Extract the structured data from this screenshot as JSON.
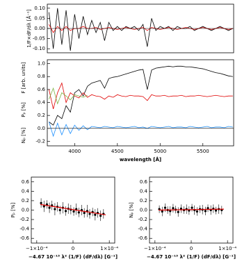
{
  "chart_data": [
    {
      "type": "line",
      "ylabel": "1/F×dF/dλ [Å⁻¹]",
      "xlim": [
        3680,
        5860
      ],
      "ylim": [
        -0.12,
        0.12
      ],
      "yticks": [
        {
          "value": -0.1,
          "label": "-0.10"
        },
        {
          "value": -0.05,
          "label": "-0.05"
        },
        {
          "value": 0,
          "label": "0.00"
        },
        {
          "value": 0.05,
          "label": "0.05"
        },
        {
          "value": 0.1,
          "label": "0.10"
        }
      ],
      "x": [
        3700,
        3750,
        3800,
        3850,
        3900,
        3950,
        4000,
        4050,
        4100,
        4150,
        4200,
        4250,
        4300,
        4350,
        4400,
        4450,
        4500,
        4550,
        4600,
        4650,
        4700,
        4750,
        4800,
        4850,
        4900,
        4950,
        5000,
        5050,
        5100,
        5150,
        5200,
        5250,
        5300,
        5350,
        5400,
        5450,
        5500,
        5550,
        5600,
        5650,
        5700,
        5750,
        5800,
        5850
      ],
      "series": [
        {
          "color": "#000000",
          "values": [
            0.08,
            -0.1,
            0.1,
            -0.08,
            0.09,
            -0.11,
            0.07,
            -0.05,
            0.06,
            -0.03,
            0.04,
            -0.02,
            0.03,
            -0.06,
            0.03,
            -0.01,
            0.01,
            -0.01,
            0.01,
            0.0,
            0.01,
            -0.01,
            0.02,
            -0.09,
            0.05,
            -0.01,
            0.01,
            0.0,
            0.01,
            -0.01,
            0.01,
            0.0,
            0.0,
            0.01,
            -0.01,
            0.0,
            0.01,
            0.0,
            -0.01,
            0.0,
            0.01,
            0.0,
            -0.01,
            0.0
          ]
        },
        {
          "color": "#e00000",
          "values": [
            0.02,
            -0.02,
            0.01,
            -0.01,
            0.01,
            -0.01,
            0.0,
            0.0,
            0.01,
            0.0,
            0.0,
            0.005,
            -0.005,
            0.0,
            0.005,
            0.0,
            -0.005,
            0.0,
            0.005,
            0.0,
            -0.005,
            0.0,
            0.005,
            -0.01,
            0.005,
            0.0,
            -0.005,
            0.0,
            0.005,
            0.0,
            -0.005,
            0.0,
            0.005,
            0.0,
            -0.005,
            0.0,
            0.005,
            0.0,
            -0.005,
            0.0,
            0.005,
            0.0,
            -0.005,
            0.0
          ]
        }
      ]
    },
    {
      "type": "line",
      "ylabels": [
        "Nₚ [%]",
        "Pₚ [%]",
        "F [arb. units]"
      ],
      "xlabel": "wavelength [Å]",
      "xlim": [
        3680,
        5860
      ],
      "ylim": [
        -0.27,
        1.06
      ],
      "xticks": [
        4000,
        4500,
        5000,
        5500
      ],
      "yticks": [
        -0.2,
        {
          "value": 0,
          "label": "0.0"
        },
        0.2,
        0.4,
        0.6,
        0.8,
        {
          "value": 1,
          "label": "1.0"
        }
      ],
      "x": [
        3700,
        3750,
        3800,
        3850,
        3900,
        3950,
        4000,
        4050,
        4100,
        4150,
        4200,
        4250,
        4300,
        4350,
        4400,
        4450,
        4500,
        4550,
        4600,
        4650,
        4700,
        4750,
        4800,
        4850,
        4900,
        4950,
        5000,
        5050,
        5100,
        5150,
        5200,
        5250,
        5300,
        5350,
        5400,
        5450,
        5500,
        5550,
        5600,
        5650,
        5700,
        5750,
        5800,
        5850
      ],
      "series": [
        {
          "color": "#000000",
          "values": [
            0.1,
            0.05,
            0.2,
            0.15,
            0.35,
            0.25,
            0.55,
            0.6,
            0.5,
            0.65,
            0.7,
            0.72,
            0.74,
            0.62,
            0.77,
            0.79,
            0.8,
            0.82,
            0.84,
            0.86,
            0.88,
            0.9,
            0.91,
            0.6,
            0.9,
            0.93,
            0.94,
            0.95,
            0.96,
            0.95,
            0.96,
            0.96,
            0.95,
            0.95,
            0.94,
            0.93,
            0.92,
            0.9,
            0.88,
            0.86,
            0.85,
            0.83,
            0.81,
            0.8
          ]
        },
        {
          "color": "#e00000",
          "values": [
            0.6,
            0.3,
            0.55,
            0.7,
            0.4,
            0.55,
            0.5,
            0.47,
            0.55,
            0.48,
            0.52,
            0.5,
            0.49,
            0.45,
            0.5,
            0.48,
            0.52,
            0.5,
            0.49,
            0.51,
            0.5,
            0.5,
            0.49,
            0.43,
            0.52,
            0.5,
            0.5,
            0.51,
            0.49,
            0.5,
            0.5,
            0.51,
            0.49,
            0.5,
            0.5,
            0.51,
            0.5,
            0.49,
            0.5,
            0.51,
            0.5,
            0.49,
            0.5,
            0.5
          ]
        },
        {
          "color": "#1e90ff",
          "values": [
            0.1,
            -0.12,
            0.08,
            -0.1,
            0.06,
            -0.08,
            0.05,
            -0.03,
            0.04,
            -0.02,
            0.03,
            0.02,
            0.01,
            0.03,
            0.02,
            0.01,
            0.03,
            0.02,
            0.01,
            0.02,
            0.03,
            0.01,
            0.02,
            0.0,
            0.03,
            0.02,
            0.01,
            0.02,
            0.03,
            0.01,
            0.02,
            0.02,
            0.01,
            0.03,
            0.02,
            0.01,
            0.02,
            0.03,
            0.01,
            0.02,
            0.02,
            0.01,
            0.03,
            0.02
          ]
        },
        {
          "color": "#7cb342",
          "values": [
            0.45,
            0.62,
            0.38,
            0.55,
            0.5,
            0.44,
            0.52,
            0.5,
            0.48,
            0.51,
            null,
            null,
            null,
            null,
            null,
            null,
            null,
            null,
            null,
            null,
            null,
            null,
            null,
            null,
            null,
            null,
            null,
            null,
            null,
            null,
            null,
            null,
            null,
            null,
            null,
            null,
            null,
            null,
            null,
            null,
            null,
            null,
            null,
            null
          ]
        }
      ]
    },
    {
      "type": "scatter",
      "ylabel": "Pₚ [%]",
      "xlabel": "−4.67 10⁻¹³ λ² (1/F) (dF/dλ) [G⁻¹]",
      "xlim": [
        -0.000115,
        0.000115
      ],
      "ylim": [
        -0.7,
        0.7
      ],
      "xticks": [
        {
          "value": -0.0001,
          "label": "−1×10⁻⁴"
        },
        0,
        {
          "value": 0.0001,
          "label": "1×10⁻⁴"
        }
      ],
      "yticks": [
        -0.6,
        -0.4,
        -0.2,
        {
          "value": 0,
          "label": "0.0"
        },
        0.2,
        0.4,
        0.6
      ],
      "x": [
        -8.8e-05,
        -8e-05,
        -7.2e-05,
        -6.5e-05,
        -5.8e-05,
        -5e-05,
        -4.3e-05,
        -3.6e-05,
        -2.8e-05,
        -2e-05,
        -1.3e-05,
        -6e-06,
        2e-06,
        9e-06,
        1.6e-05,
        2.4e-05,
        3.1e-05,
        3.9e-05,
        4.6e-05,
        5.4e-05,
        6.1e-05,
        6.8e-05,
        7.6e-05,
        8.4e-05
      ],
      "values": [
        0.15,
        0.08,
        0.12,
        0.05,
        0.1,
        0.02,
        0.07,
        0.0,
        0.05,
        -0.02,
        0.03,
        0.01,
        -0.03,
        0.02,
        -0.05,
        0.0,
        -0.06,
        -0.02,
        -0.08,
        -0.04,
        -0.1,
        -0.06,
        -0.12,
        -0.08
      ],
      "errors": [
        0.1,
        0.12,
        0.09,
        0.11,
        0.1,
        0.13,
        0.1,
        0.09,
        0.12,
        0.1,
        0.11,
        0.1,
        0.09,
        0.12,
        0.1,
        0.11,
        0.1,
        0.13,
        0.1,
        0.09,
        0.12,
        0.1,
        0.11,
        0.1
      ],
      "fit": {
        "color": "#e00000",
        "x": [
          -9e-05,
          9e-05
        ],
        "values": [
          0.12,
          -0.1
        ]
      }
    },
    {
      "type": "scatter",
      "ylabel": "Nₚ [%]",
      "xlabel": "−4.67 10⁻¹³ λ² (1/F) (dF/dλ) [G⁻¹]",
      "xlim": [
        -0.000115,
        0.000115
      ],
      "ylim": [
        -0.7,
        0.7
      ],
      "xticks": [
        {
          "value": -0.0001,
          "label": "−1×10⁻⁴"
        },
        0,
        {
          "value": 0.0001,
          "label": "1×10⁻⁴"
        }
      ],
      "yticks": [
        -0.6,
        -0.4,
        -0.2,
        {
          "value": 0,
          "label": "0.0"
        },
        0.2,
        0.4,
        0.6
      ],
      "x": [
        -8.8e-05,
        -8e-05,
        -7.2e-05,
        -6.5e-05,
        -5.8e-05,
        -5e-05,
        -4.3e-05,
        -3.6e-05,
        -2.8e-05,
        -2e-05,
        -1.3e-05,
        -6e-06,
        2e-06,
        9e-06,
        1.6e-05,
        2.4e-05,
        3.1e-05,
        3.9e-05,
        4.6e-05,
        5.4e-05,
        6.1e-05,
        6.8e-05,
        7.6e-05,
        8.4e-05
      ],
      "values": [
        0.02,
        -0.03,
        0.05,
        0.0,
        -0.02,
        0.04,
        0.01,
        -0.04,
        0.03,
        0.0,
        0.02,
        -0.01,
        0.05,
        0.0,
        -0.03,
        0.02,
        0.01,
        -0.02,
        0.04,
        0.0,
        0.03,
        -0.01,
        0.02,
        0.0
      ],
      "errors": [
        0.08,
        0.1,
        0.09,
        0.08,
        0.1,
        0.09,
        0.08,
        0.1,
        0.09,
        0.08,
        0.1,
        0.09,
        0.08,
        0.1,
        0.09,
        0.08,
        0.1,
        0.09,
        0.08,
        0.1,
        0.09,
        0.08,
        0.1,
        0.09
      ],
      "fit": {
        "color": "#e00000",
        "x": [
          -9e-05,
          9e-05
        ],
        "values": [
          0.0,
          0.02
        ]
      }
    }
  ]
}
